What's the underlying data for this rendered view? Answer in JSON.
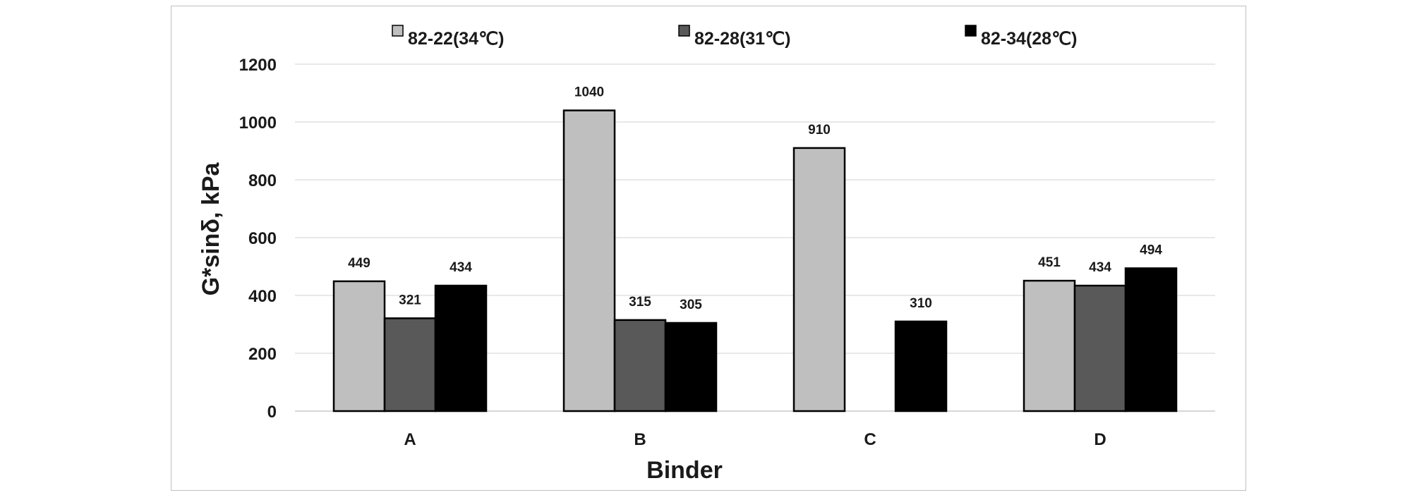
{
  "chart_data": {
    "type": "bar",
    "categories": [
      "A",
      "B",
      "C",
      "D"
    ],
    "series": [
      {
        "name": "82-22(34℃)",
        "color": "#bfbfbf",
        "values": [
          449,
          1040,
          910,
          451
        ],
        "labels": [
          "449",
          "1040",
          "910",
          "451"
        ]
      },
      {
        "name": "82-28(31℃)",
        "color": "#595959",
        "values": [
          321,
          315,
          null,
          434
        ],
        "labels": [
          "321",
          "315",
          "",
          "434"
        ]
      },
      {
        "name": "82-34(28℃)",
        "color": "#000000",
        "values": [
          434,
          305,
          310,
          494
        ],
        "labels": [
          "434",
          "305",
          "310",
          "494"
        ]
      }
    ],
    "xlabel": "Binder",
    "ylabel": "G*sinδ, kPa",
    "ylim": [
      0,
      1200
    ],
    "yticks": [
      0,
      200,
      400,
      600,
      800,
      1000,
      1200
    ],
    "ytick_labels": [
      "0",
      "200",
      "400",
      "600",
      "800",
      "1000",
      "1200"
    ],
    "grid": true,
    "legend_position": "top"
  }
}
